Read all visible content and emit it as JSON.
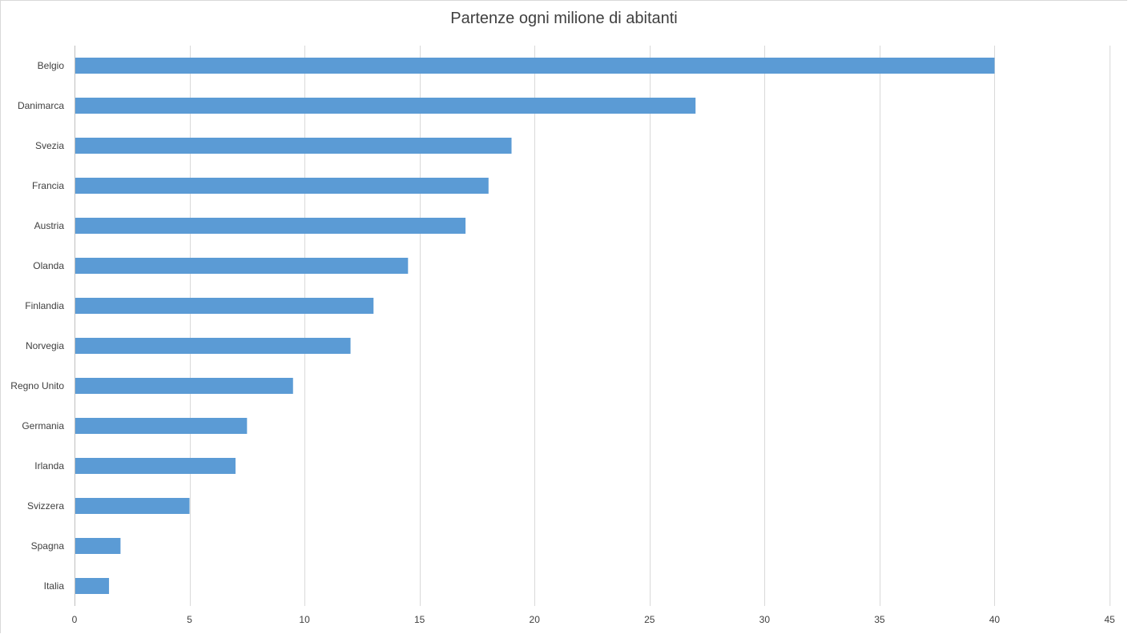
{
  "chart_data": {
    "type": "bar",
    "orientation": "horizontal",
    "title": "Partenze ogni milione di abitanti",
    "categories": [
      "Belgio",
      "Danimarca",
      "Svezia",
      "Francia",
      "Austria",
      "Olanda",
      "Finlandia",
      "Norvegia",
      "Regno Unito",
      "Germania",
      "Irlanda",
      "Svizzera",
      "Spagna",
      "Italia"
    ],
    "values": [
      40,
      27,
      19,
      18,
      17,
      14.5,
      13,
      12,
      9.5,
      7.5,
      7,
      5,
      2,
      1.5
    ],
    "xlim": [
      0,
      45
    ],
    "xticks": [
      0,
      5,
      10,
      15,
      20,
      25,
      30,
      35,
      40,
      45
    ],
    "grid": true,
    "legend": "none",
    "bar_color": "#5b9bd5",
    "grid_color": "#d9d9d9"
  }
}
